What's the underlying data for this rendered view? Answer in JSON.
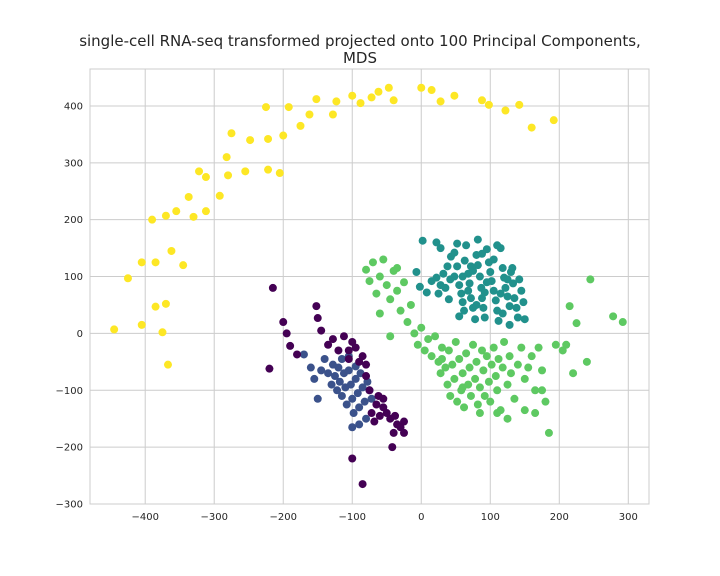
{
  "chart_data": {
    "type": "scatter",
    "title_lines": [
      "single-cell RNA-seq transformed projected onto 100 Principal Components,",
      "MDS"
    ],
    "xlabel": "",
    "ylabel": "",
    "xlim": [
      -480,
      330
    ],
    "ylim": [
      -300,
      465
    ],
    "xticks": [
      -400,
      -300,
      -200,
      -100,
      0,
      100,
      200,
      300
    ],
    "yticks": [
      -300,
      -200,
      -100,
      0,
      100,
      200,
      300,
      400
    ],
    "grid": true,
    "series": [
      {
        "color": "#fde725",
        "points": [
          [
            -445,
            7
          ],
          [
            -425,
            97
          ],
          [
            -405,
            125
          ],
          [
            -405,
            15
          ],
          [
            -390,
            200
          ],
          [
            -385,
            125
          ],
          [
            -385,
            47
          ],
          [
            -375,
            2
          ],
          [
            -370,
            207
          ],
          [
            -370,
            52
          ],
          [
            -367,
            -55
          ],
          [
            -362,
            145
          ],
          [
            -355,
            215
          ],
          [
            -345,
            120
          ],
          [
            -337,
            240
          ],
          [
            -330,
            205
          ],
          [
            -322,
            285
          ],
          [
            -312,
            275
          ],
          [
            -312,
            215
          ],
          [
            -292,
            242
          ],
          [
            -282,
            310
          ],
          [
            -280,
            278
          ],
          [
            -275,
            352
          ],
          [
            -255,
            285
          ],
          [
            -248,
            340
          ],
          [
            -225,
            398
          ],
          [
            -222,
            288
          ],
          [
            -222,
            342
          ],
          [
            -205,
            282
          ],
          [
            -200,
            348
          ],
          [
            -192,
            398
          ],
          [
            -175,
            365
          ],
          [
            -162,
            385
          ],
          [
            -152,
            412
          ],
          [
            -128,
            385
          ],
          [
            -123,
            408
          ],
          [
            -100,
            418
          ],
          [
            -88,
            405
          ],
          [
            -72,
            415
          ],
          [
            -62,
            425
          ],
          [
            -47,
            432
          ],
          [
            -40,
            410
          ],
          [
            0,
            432
          ],
          [
            15,
            428
          ],
          [
            28,
            408
          ],
          [
            48,
            418
          ],
          [
            88,
            410
          ],
          [
            98,
            402
          ],
          [
            122,
            392
          ],
          [
            142,
            402
          ],
          [
            160,
            362
          ],
          [
            192,
            375
          ]
        ]
      },
      {
        "color": "#21918c",
        "points": [
          [
            2,
            163
          ],
          [
            22,
            160
          ],
          [
            -7,
            108
          ],
          [
            -2,
            82
          ],
          [
            8,
            72
          ],
          [
            15,
            92
          ],
          [
            22,
            98
          ],
          [
            28,
            85
          ],
          [
            32,
            105
          ],
          [
            38,
            118
          ],
          [
            43,
            135
          ],
          [
            48,
            142
          ],
          [
            48,
            100
          ],
          [
            52,
            118
          ],
          [
            55,
            85
          ],
          [
            58,
            70
          ],
          [
            60,
            55
          ],
          [
            63,
            128
          ],
          [
            65,
            155
          ],
          [
            68,
            105
          ],
          [
            70,
            88
          ],
          [
            72,
            62
          ],
          [
            75,
            45
          ],
          [
            78,
            25
          ],
          [
            80,
            138
          ],
          [
            82,
            120
          ],
          [
            85,
            100
          ],
          [
            87,
            80
          ],
          [
            88,
            62
          ],
          [
            90,
            45
          ],
          [
            92,
            28
          ],
          [
            95,
            148
          ],
          [
            98,
            125
          ],
          [
            100,
            108
          ],
          [
            102,
            92
          ],
          [
            105,
            75
          ],
          [
            108,
            58
          ],
          [
            110,
            40
          ],
          [
            112,
            22
          ],
          [
            115,
            150
          ],
          [
            118,
            115
          ],
          [
            120,
            98
          ],
          [
            122,
            80
          ],
          [
            125,
            65
          ],
          [
            128,
            48
          ],
          [
            130,
            108
          ],
          [
            133,
            88
          ],
          [
            135,
            62
          ],
          [
            138,
            45
          ],
          [
            140,
            28
          ],
          [
            142,
            95
          ],
          [
            145,
            75
          ],
          [
            148,
            55
          ],
          [
            150,
            25
          ],
          [
            28,
            150
          ],
          [
            35,
            80
          ],
          [
            42,
            95
          ],
          [
            52,
            158
          ],
          [
            62,
            40
          ],
          [
            68,
            75
          ],
          [
            75,
            110
          ],
          [
            82,
            165
          ],
          [
            92,
            72
          ],
          [
            105,
            130
          ],
          [
            118,
            35
          ],
          [
            128,
            15
          ],
          [
            132,
            115
          ],
          [
            110,
            155
          ],
          [
            55,
            30
          ],
          [
            80,
            50
          ],
          [
            95,
            90
          ],
          [
            72,
            118
          ],
          [
            60,
            100
          ],
          [
            88,
            140
          ],
          [
            40,
            60
          ],
          [
            25,
            70
          ],
          [
            115,
            70
          ],
          [
            125,
            95
          ]
        ]
      },
      {
        "color": "#5ec962",
        "points": [
          [
            -80,
            112
          ],
          [
            -75,
            92
          ],
          [
            -70,
            125
          ],
          [
            -65,
            70
          ],
          [
            -60,
            100
          ],
          [
            -55,
            130
          ],
          [
            -50,
            85
          ],
          [
            -45,
            60
          ],
          [
            -40,
            110
          ],
          [
            -35,
            75
          ],
          [
            -30,
            40
          ],
          [
            -25,
            90
          ],
          [
            -20,
            20
          ],
          [
            -15,
            50
          ],
          [
            -10,
            0
          ],
          [
            -5,
            -20
          ],
          [
            0,
            10
          ],
          [
            5,
            -30
          ],
          [
            10,
            -10
          ],
          [
            15,
            -40
          ],
          [
            20,
            -5
          ],
          [
            25,
            -50
          ],
          [
            28,
            -70
          ],
          [
            30,
            -25
          ],
          [
            35,
            -60
          ],
          [
            38,
            -90
          ],
          [
            40,
            -30
          ],
          [
            42,
            -110
          ],
          [
            45,
            -55
          ],
          [
            48,
            -80
          ],
          [
            50,
            -15
          ],
          [
            52,
            -120
          ],
          [
            55,
            -45
          ],
          [
            58,
            -100
          ],
          [
            60,
            -70
          ],
          [
            62,
            -130
          ],
          [
            65,
            -35
          ],
          [
            68,
            -90
          ],
          [
            70,
            -60
          ],
          [
            72,
            -110
          ],
          [
            75,
            -20
          ],
          [
            78,
            -80
          ],
          [
            80,
            -50
          ],
          [
            82,
            -125
          ],
          [
            85,
            -95
          ],
          [
            88,
            -30
          ],
          [
            90,
            -65
          ],
          [
            92,
            -110
          ],
          [
            95,
            -40
          ],
          [
            98,
            -85
          ],
          [
            100,
            -120
          ],
          [
            102,
            -55
          ],
          [
            105,
            -25
          ],
          [
            108,
            -75
          ],
          [
            110,
            -100
          ],
          [
            112,
            -45
          ],
          [
            115,
            -135
          ],
          [
            118,
            -60
          ],
          [
            120,
            -15
          ],
          [
            125,
            -90
          ],
          [
            128,
            -40
          ],
          [
            130,
            -70
          ],
          [
            135,
            -115
          ],
          [
            140,
            -55
          ],
          [
            145,
            -25
          ],
          [
            150,
            -80
          ],
          [
            155,
            -60
          ],
          [
            160,
            -40
          ],
          [
            165,
            -100
          ],
          [
            170,
            -25
          ],
          [
            175,
            -65
          ],
          [
            180,
            -120
          ],
          [
            185,
            -175
          ],
          [
            205,
            -30
          ],
          [
            215,
            48
          ],
          [
            220,
            -70
          ],
          [
            225,
            18
          ],
          [
            245,
            95
          ],
          [
            240,
            -50
          ],
          [
            278,
            30
          ],
          [
            292,
            20
          ],
          [
            -35,
            115
          ],
          [
            -60,
            35
          ],
          [
            -45,
            -5
          ],
          [
            30,
            -45
          ],
          [
            60,
            -95
          ],
          [
            85,
            -140
          ],
          [
            110,
            -140
          ],
          [
            125,
            -150
          ],
          [
            150,
            -135
          ],
          [
            195,
            -20
          ],
          [
            210,
            -20
          ],
          [
            165,
            -140
          ],
          [
            175,
            -100
          ]
        ]
      },
      {
        "color": "#3b528b",
        "points": [
          [
            -170,
            -37
          ],
          [
            -160,
            -60
          ],
          [
            -155,
            -80
          ],
          [
            -150,
            -115
          ],
          [
            -145,
            -65
          ],
          [
            -140,
            -45
          ],
          [
            -135,
            -70
          ],
          [
            -130,
            -90
          ],
          [
            -128,
            -55
          ],
          [
            -125,
            -75
          ],
          [
            -122,
            -100
          ],
          [
            -120,
            -60
          ],
          [
            -118,
            -85
          ],
          [
            -115,
            -110
          ],
          [
            -112,
            -70
          ],
          [
            -110,
            -95
          ],
          [
            -108,
            -125
          ],
          [
            -105,
            -65
          ],
          [
            -102,
            -90
          ],
          [
            -100,
            -115
          ],
          [
            -98,
            -140
          ],
          [
            -95,
            -80
          ],
          [
            -92,
            -105
          ],
          [
            -90,
            -130
          ],
          [
            -88,
            -70
          ],
          [
            -85,
            -95
          ],
          [
            -82,
            -120
          ],
          [
            -80,
            -150
          ],
          [
            -78,
            -85
          ],
          [
            -75,
            -100
          ],
          [
            -72,
            -115
          ],
          [
            -100,
            -165
          ],
          [
            -90,
            -160
          ],
          [
            -105,
            -40
          ],
          [
            -115,
            -45
          ],
          [
            -95,
            -58
          ]
        ]
      },
      {
        "color": "#440154",
        "points": [
          [
            -215,
            80
          ],
          [
            -220,
            -62
          ],
          [
            -200,
            20
          ],
          [
            -195,
            0
          ],
          [
            -190,
            -22
          ],
          [
            -180,
            -37
          ],
          [
            -152,
            48
          ],
          [
            -150,
            27
          ],
          [
            -145,
            5
          ],
          [
            -135,
            -20
          ],
          [
            -128,
            -10
          ],
          [
            -120,
            -30
          ],
          [
            -112,
            -5
          ],
          [
            -105,
            -45
          ],
          [
            -100,
            -15
          ],
          [
            -95,
            -25
          ],
          [
            -90,
            -50
          ],
          [
            -85,
            -40
          ],
          [
            -80,
            -75
          ],
          [
            -75,
            -100
          ],
          [
            -72,
            -140
          ],
          [
            -68,
            -155
          ],
          [
            -65,
            -125
          ],
          [
            -60,
            -145
          ],
          [
            -55,
            -130
          ],
          [
            -50,
            -140
          ],
          [
            -45,
            -150
          ],
          [
            -42,
            -200
          ],
          [
            -40,
            -175
          ],
          [
            -38,
            -145
          ],
          [
            -35,
            -160
          ],
          [
            -30,
            -165
          ],
          [
            -25,
            -155
          ],
          [
            -25,
            -175
          ],
          [
            -55,
            -115
          ],
          [
            -100,
            -220
          ],
          [
            -85,
            -265
          ],
          [
            -62,
            -110
          ],
          [
            -80,
            -55
          ],
          [
            -105,
            -30
          ]
        ]
      }
    ]
  }
}
